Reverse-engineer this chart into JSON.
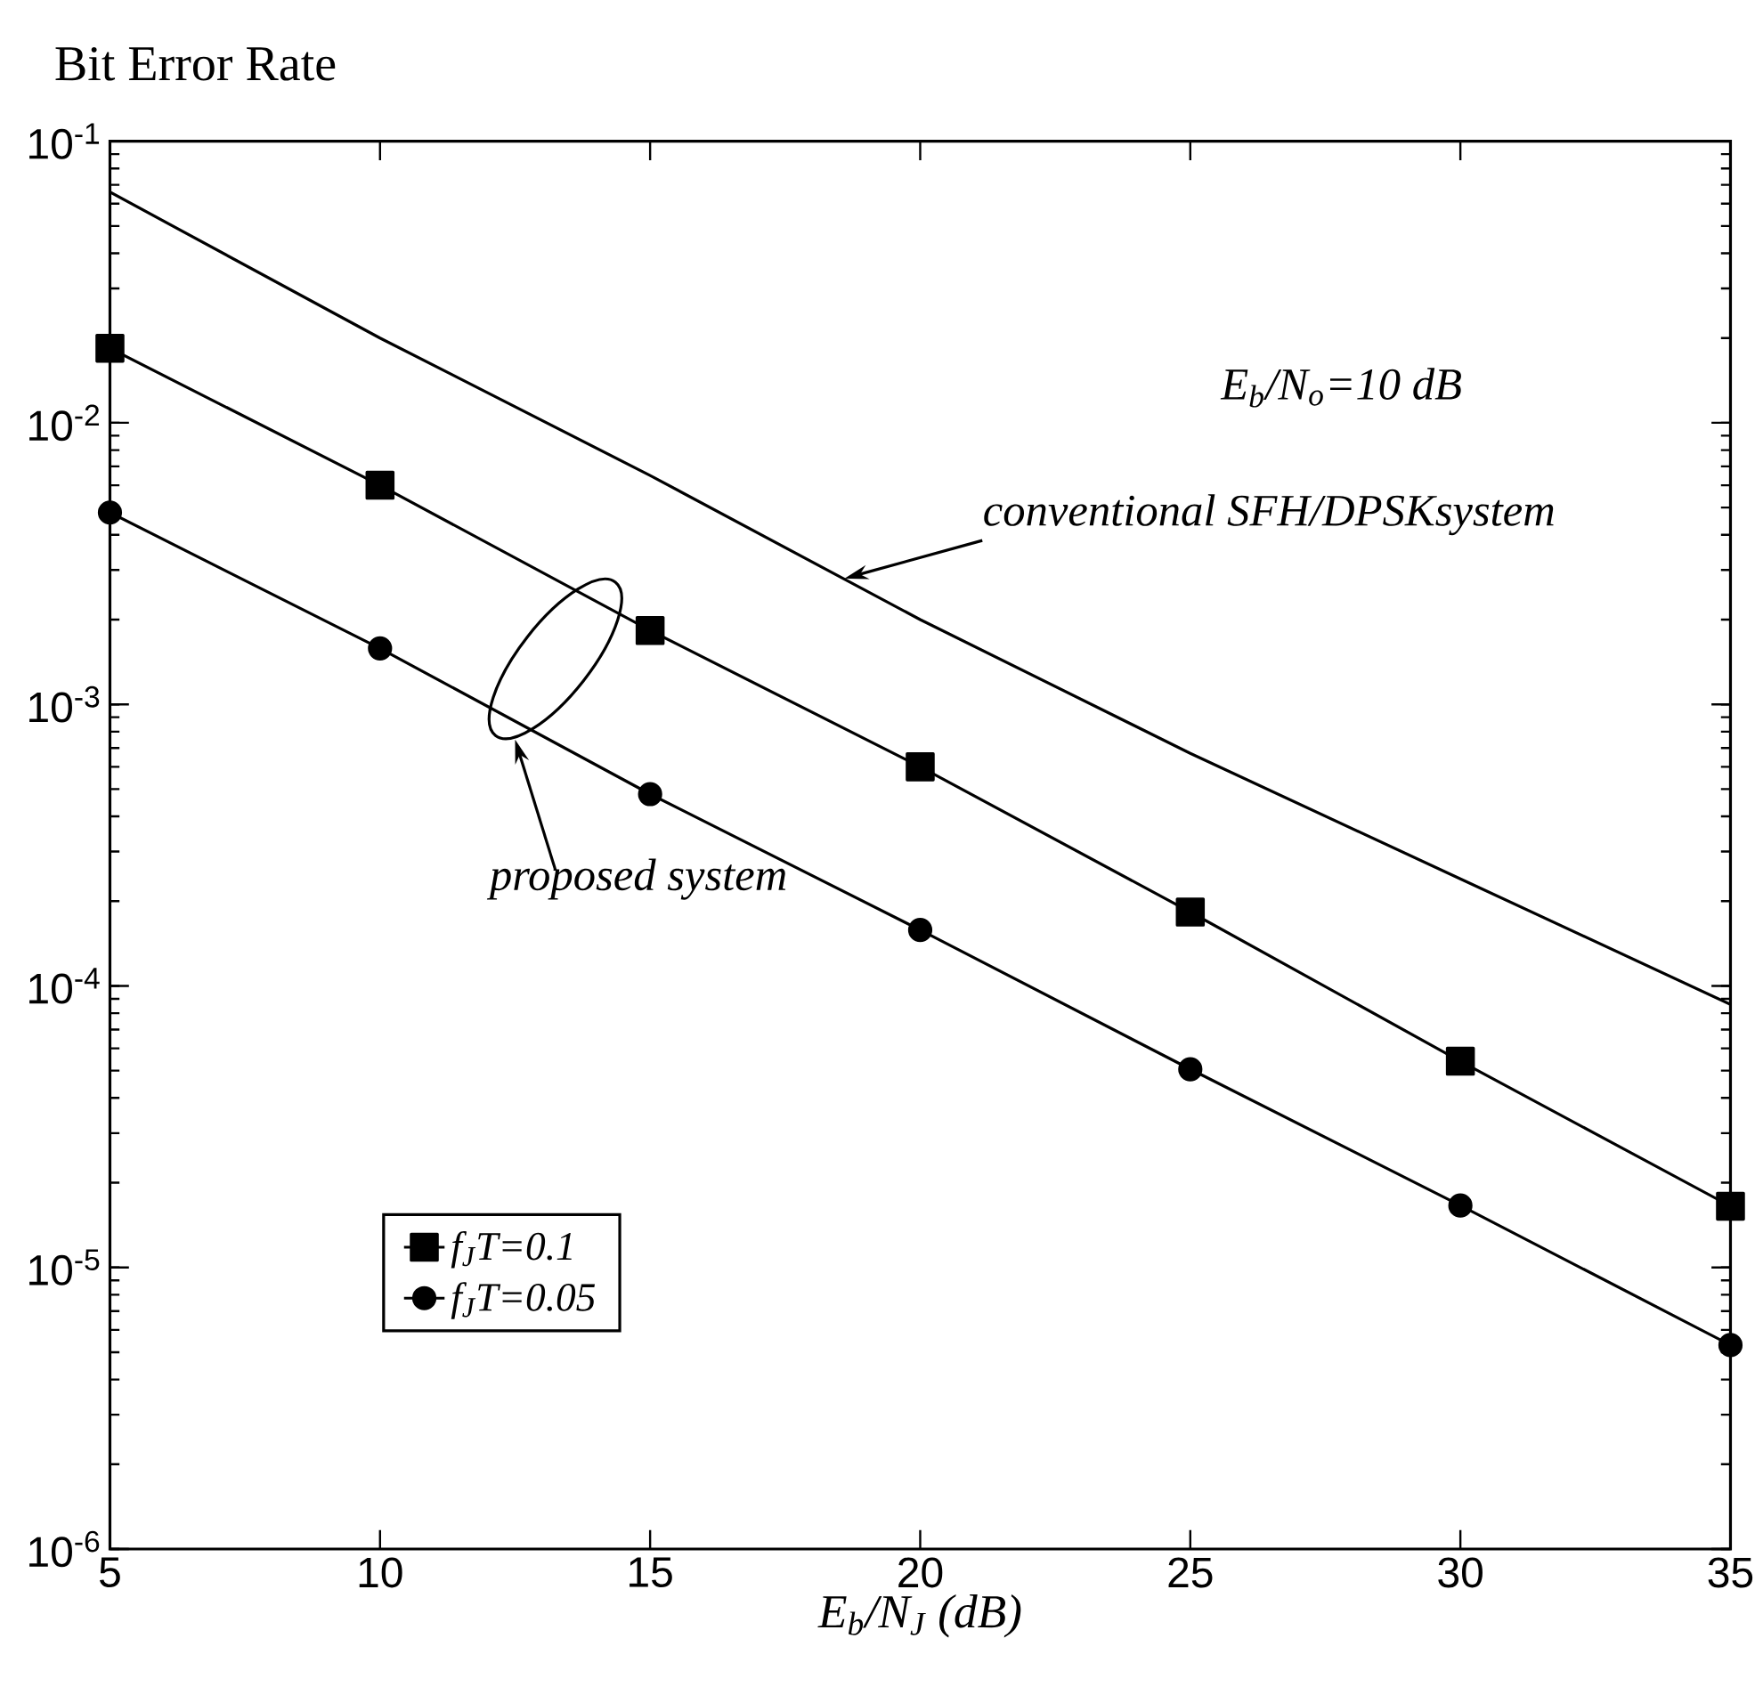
{
  "chart_data": {
    "type": "line",
    "ylabel": "Bit Error Rate",
    "xlabel": "E$_{b}$/N$_{J}$ (dB)",
    "x": [
      5,
      10,
      15,
      20,
      25,
      30,
      35
    ],
    "series": [
      {
        "color": "#000000",
        "marker": "none",
        "values": [
          0.066,
          0.02,
          0.0065,
          0.002,
          0.00067,
          0.00024,
          8.6e-05
        ]
      },
      {
        "name": "f$_{J}$T=0.1",
        "color": "#000000",
        "marker": "square",
        "values": [
          0.0184,
          0.006,
          0.00183,
          0.0006,
          0.000183,
          5.4e-05,
          1.65e-05
        ]
      },
      {
        "name": "f$_{J}$T=0.05",
        "color": "#000000",
        "marker": "circle",
        "values": [
          0.0048,
          0.00158,
          0.00048,
          0.000158,
          5.06e-05,
          1.66e-05,
          5.3e-06
        ]
      }
    ],
    "log": "y",
    "grid": false,
    "legend": "bottom left",
    "line_style": "solid",
    "xlim": [
      5,
      35
    ],
    "ylim": [
      1e-06,
      0.1
    ],
    "xticks": [
      5,
      10,
      15,
      20,
      25,
      30,
      35
    ],
    "yticks": [
      {
        "value": 1e-06,
        "label": "10$^{-6}$"
      },
      {
        "value": 1e-05,
        "label": "10$^{-5}$"
      },
      {
        "value": 0.0001,
        "label": "10$^{-4}$"
      },
      {
        "value": 0.001,
        "label": "10$^{-3}$"
      },
      {
        "value": 0.01,
        "label": "10$^{-2}$"
      },
      {
        "value": 0.1,
        "label": "10$^{-1}$"
      }
    ],
    "annotations": [
      "E$_{b}$/N$_{o}$=10 dB",
      {
        "text": "conventional SFH/DPSKsystem",
        "x": 18.6,
        "y": 0.0028
      },
      "proposed system"
    ]
  }
}
